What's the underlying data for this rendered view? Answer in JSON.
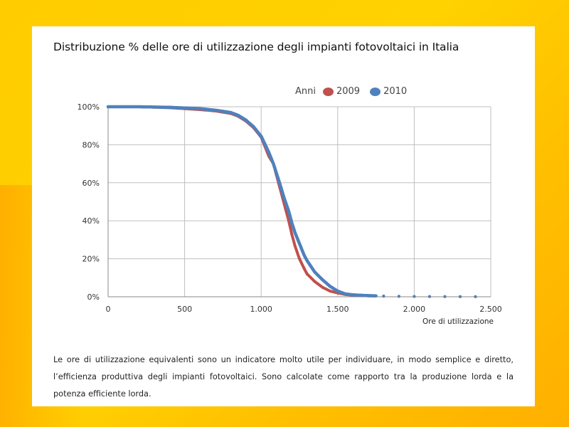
{
  "title": "Distribuzione % delle ore di utilizzazione degli impianti fotovoltaici in Italia",
  "description": "Le ore di utilizzazione equivalenti sono un indicatore molto utile per individuare, in modo semplice e diretto, l’efficienza produttiva degli impianti fotovoltaici. Sono calcolate come rapporto tra la produzione lorda e la potenza efficiente lorda.",
  "chart_data": {
    "type": "scatter",
    "title": "Distribuzione % delle ore di utilizzazione degli impianti fotovoltaici in Italia",
    "xlabel": "Ore di utilizzazione",
    "ylabel": "",
    "xlim": [
      0,
      2500
    ],
    "ylim": [
      0,
      100
    ],
    "x_ticks": [
      0,
      500,
      1000,
      1500,
      2000,
      2500
    ],
    "x_tick_labels": [
      "0",
      "500",
      "1.000",
      "1.500",
      "2.000",
      "2.500"
    ],
    "y_ticks": [
      0,
      20,
      40,
      60,
      80,
      100
    ],
    "y_tick_labels": [
      "0%",
      "20%",
      "40%",
      "60%",
      "80%",
      "100%"
    ],
    "grid": true,
    "legend": {
      "title": "Anni",
      "placement": "top-right"
    },
    "series": [
      {
        "name": "2009",
        "color": "#c0504d",
        "x": [
          0,
          200,
          400,
          600,
          700,
          800,
          850,
          900,
          950,
          1000,
          1050,
          1080,
          1100,
          1120,
          1150,
          1180,
          1200,
          1220,
          1250,
          1280,
          1300,
          1350,
          1400,
          1450,
          1500,
          1550,
          1600,
          1700,
          1800,
          1900,
          2000,
          2100,
          2200,
          2300,
          2400
        ],
        "values": [
          100,
          100,
          99.5,
          98.5,
          97.8,
          96.5,
          95,
          92.5,
          89,
          84,
          74,
          70,
          64,
          58,
          49,
          40,
          33,
          27,
          20,
          15,
          12,
          8,
          5,
          3,
          2,
          1.2,
          0.8,
          0.5,
          0.3,
          0.2,
          0.15,
          0.1,
          0.1,
          0.05,
          0.05
        ]
      },
      {
        "name": "2010",
        "color": "#4f81bd",
        "x": [
          0,
          200,
          400,
          600,
          700,
          800,
          850,
          900,
          950,
          1000,
          1050,
          1080,
          1100,
          1120,
          1150,
          1180,
          1200,
          1220,
          1250,
          1280,
          1300,
          1350,
          1400,
          1450,
          1500,
          1550,
          1600,
          1700,
          1800,
          1900,
          2000,
          2100,
          2200,
          2300,
          2400
        ],
        "values": [
          100,
          100,
          99.7,
          99,
          98.2,
          97,
          95.5,
          93,
          89.5,
          84.5,
          76,
          70,
          65,
          60,
          52,
          45,
          39,
          34,
          28,
          22,
          19,
          13,
          9,
          5.5,
          3,
          1.5,
          1,
          0.6,
          0.4,
          0.3,
          0.2,
          0.15,
          0.1,
          0.08,
          0.05
        ]
      }
    ]
  }
}
